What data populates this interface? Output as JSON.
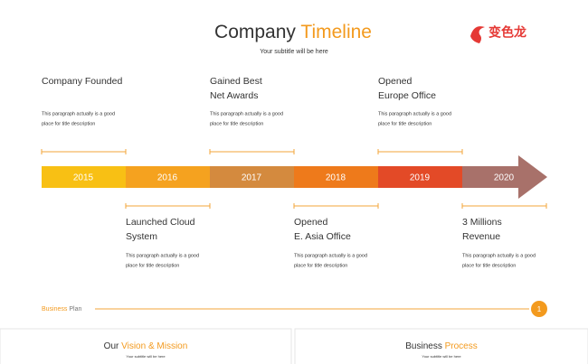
{
  "header": {
    "title_left": "Company",
    "title_right": "Timeline",
    "subtitle": "Your subtitle will be here",
    "logo": "变色龙"
  },
  "timeline": {
    "segments": [
      {
        "label": "2015",
        "color": "#f8c014"
      },
      {
        "label": "2016",
        "color": "#f5a21f"
      },
      {
        "label": "2017",
        "color": "#d48a3e"
      },
      {
        "label": "2018",
        "color": "#ee7a1b"
      },
      {
        "label": "2019",
        "color": "#e34a27"
      },
      {
        "label": "2020",
        "color": "#a8716a"
      }
    ],
    "events": [
      {
        "title": [
          "Company Founded"
        ],
        "description": [
          "This paragraph actually is a good",
          "place for title description"
        ]
      },
      {
        "title": [
          "Launched Cloud",
          "System"
        ],
        "description": [
          "This paragraph actually is a good",
          "place for title description"
        ]
      },
      {
        "title": [
          "Gained Best",
          "Net Awards"
        ],
        "description": [
          "This paragraph actually is a good",
          "place for title description"
        ]
      },
      {
        "title": [
          "Opened",
          "E. Asia Office"
        ],
        "description": [
          "This paragraph actually is a good",
          "place for title description"
        ]
      },
      {
        "title": [
          "Opened",
          "Europe Office"
        ],
        "description": [
          "This paragraph actually is a good",
          "place for title description"
        ]
      },
      {
        "title": [
          "3 Millions",
          "Revenue"
        ],
        "description": [
          "This paragraph actually is a good",
          "place for title description"
        ]
      }
    ]
  },
  "footer": {
    "left": "Business",
    "right": "Plan",
    "page": "1"
  },
  "panels": [
    {
      "title_left": "Our",
      "title_right": "Vision & Mission",
      "subtitle": "Your subtitle will be here"
    },
    {
      "title_left": "Business",
      "title_right": "Process",
      "subtitle": "Your subtitle will be here"
    }
  ]
}
